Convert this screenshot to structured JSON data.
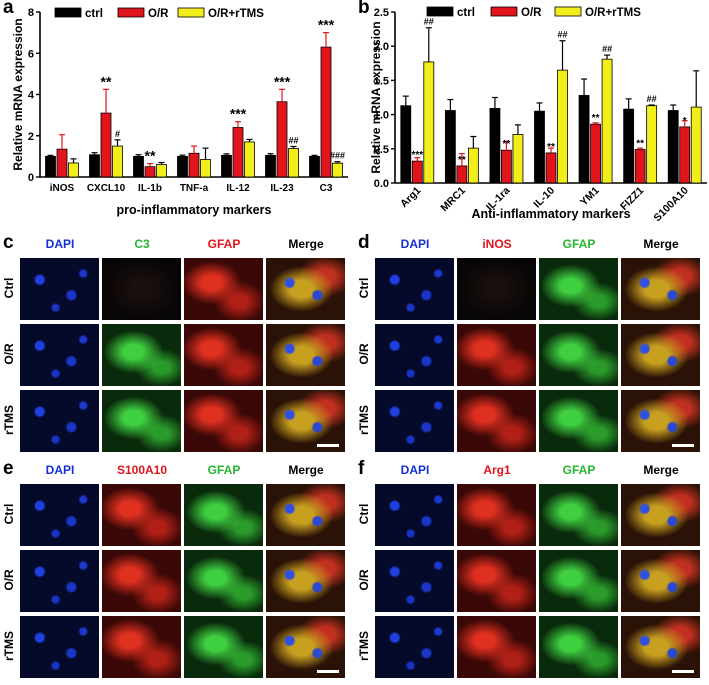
{
  "panel_letters": {
    "a": "a",
    "b": "b",
    "c": "c",
    "d": "d",
    "e": "e",
    "f": "f"
  },
  "colors": {
    "ctrl": "#000000",
    "or": "#e0151b",
    "rtms": "#f2ee1a",
    "dapi": "#1530d8",
    "green": "#27b530",
    "red": "#e0151b"
  },
  "chart_data": [
    {
      "type": "bar",
      "panel": "a",
      "ylabel": "Relative mRNA expression",
      "xlabel": "pro-inflammatory markers",
      "ylim": [
        0,
        8
      ],
      "yticks": [
        "0",
        "2",
        "4",
        "6",
        "8"
      ],
      "categories": [
        "iNOS",
        "CXCL10",
        "IL-1b",
        "TNF-a",
        "IL-12",
        "IL-23",
        "C3"
      ],
      "series": [
        {
          "name": "ctrl",
          "values": [
            1.0,
            1.08,
            1.0,
            1.0,
            1.05,
            1.05,
            1.0
          ],
          "errors": [
            0.05,
            0.1,
            0.08,
            0.06,
            0.07,
            0.08,
            0.05
          ]
        },
        {
          "name": "O/R",
          "values": [
            1.35,
            3.1,
            0.5,
            1.15,
            2.4,
            3.65,
            6.3
          ],
          "errors": [
            0.7,
            1.15,
            0.15,
            0.35,
            0.28,
            0.6,
            0.7
          ]
        },
        {
          "name": "O/R+rTMS",
          "values": [
            0.68,
            1.5,
            0.6,
            0.85,
            1.7,
            1.38,
            0.67
          ],
          "errors": [
            0.2,
            0.3,
            0.1,
            0.55,
            0.12,
            0.1,
            0.07
          ]
        }
      ],
      "annotations_or": [
        "",
        "**",
        "**",
        "",
        "***",
        "***",
        "***"
      ],
      "annotations_rtms": [
        "",
        "#",
        "",
        "",
        "",
        "##",
        "###"
      ]
    },
    {
      "type": "bar",
      "panel": "b",
      "ylabel": "Relative mRNA expression",
      "xlabel": "Anti-inflammatory markers",
      "ylim": [
        0,
        2.5
      ],
      "yticks": [
        "0.0",
        "0.5",
        "1.0",
        "1.5",
        "2.0",
        "2.5"
      ],
      "categories": [
        "Arg1",
        "MRC1",
        "IL-1ra",
        "IL-10",
        "YM1",
        "FIZZ1",
        "S100A10"
      ],
      "series": [
        {
          "name": "ctrl",
          "values": [
            1.13,
            1.06,
            1.09,
            1.05,
            1.28,
            1.08,
            1.06
          ],
          "errors": [
            0.14,
            0.16,
            0.16,
            0.12,
            0.24,
            0.15,
            0.08
          ]
        },
        {
          "name": "O/R",
          "values": [
            0.32,
            0.25,
            0.48,
            0.44,
            0.86,
            0.49,
            0.82
          ],
          "errors": [
            0.05,
            0.18,
            0.13,
            0.07,
            0.02,
            0.02,
            0.09
          ]
        },
        {
          "name": "O/R+rTMS",
          "values": [
            1.77,
            0.51,
            0.71,
            1.65,
            1.81,
            1.13,
            1.11
          ],
          "errors": [
            0.5,
            0.17,
            0.14,
            0.43,
            0.06,
            0.01,
            0.53
          ]
        }
      ],
      "annotations_or": [
        "***",
        "**",
        "**",
        "**",
        "**",
        "**",
        "*"
      ],
      "annotations_rtms": [
        "##",
        "",
        "",
        "##",
        "##",
        "##",
        ""
      ]
    }
  ],
  "micro_panels": [
    {
      "letter": "c",
      "headers": [
        "DAPI",
        "C3",
        "GFAP",
        "Merge"
      ],
      "rows": [
        "Ctrl",
        "O/R",
        "rTMS"
      ],
      "header_colors": [
        "#1530d8",
        "#27b530",
        "#e0151b",
        "#000000"
      ]
    },
    {
      "letter": "d",
      "headers": [
        "DAPI",
        "iNOS",
        "GFAP",
        "Merge"
      ],
      "rows": [
        "Ctrl",
        "O/R",
        "rTMS"
      ],
      "header_colors": [
        "#1530d8",
        "#e0151b",
        "#27b530",
        "#000000"
      ]
    },
    {
      "letter": "e",
      "headers": [
        "DAPI",
        "S100A10",
        "GFAP",
        "Merge"
      ],
      "rows": [
        "Ctrl",
        "O/R",
        "rTMS"
      ],
      "header_colors": [
        "#1530d8",
        "#e0151b",
        "#27b530",
        "#000000"
      ]
    },
    {
      "letter": "f",
      "headers": [
        "DAPI",
        "Arg1",
        "GFAP",
        "Merge"
      ],
      "rows": [
        "Ctrl",
        "O/R",
        "rTMS"
      ],
      "header_colors": [
        "#1530d8",
        "#e0151b",
        "#27b530",
        "#000000"
      ]
    }
  ]
}
